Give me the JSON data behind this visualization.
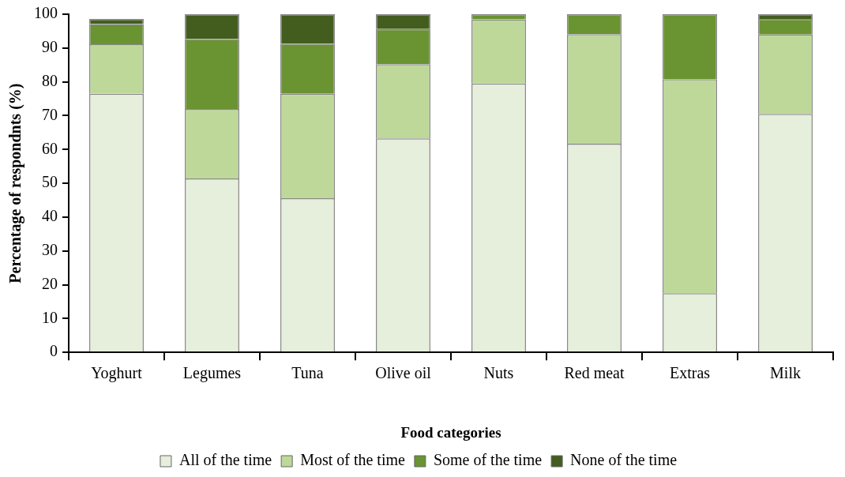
{
  "chart_data": {
    "type": "bar",
    "stacked": true,
    "xlabel": "Food categories",
    "ylabel": "Percentage of respondnts (%)",
    "categories": [
      "Yoghurt",
      "Legumes",
      "Tuna",
      "Olive oil",
      "Nuts",
      "Red meat",
      "Extras",
      "Milk"
    ],
    "series": [
      {
        "name": "All of the time",
        "color": "#e6eedc",
        "values": [
          76.5,
          51.4,
          45.6,
          63.3,
          79.5,
          61.7,
          17.5,
          70.5
        ]
      },
      {
        "name": "Most of the time",
        "color": "#bed89a",
        "values": [
          14.6,
          20.6,
          30.9,
          21.9,
          19.0,
          32.4,
          63.3,
          23.5
        ]
      },
      {
        "name": "Some of the time",
        "color": "#6a9331",
        "values": [
          6.0,
          20.7,
          14.8,
          10.4,
          1.5,
          5.9,
          19.2,
          4.6
        ]
      },
      {
        "name": "None of the time",
        "color": "#435d1f",
        "values": [
          1.5,
          7.3,
          8.7,
          4.4,
          0,
          0,
          0,
          1.4
        ]
      }
    ],
    "ylim": [
      0,
      100
    ],
    "yticks": [
      0,
      10,
      20,
      30,
      40,
      50,
      60,
      70,
      80,
      90,
      100
    ],
    "grid": false,
    "legend": "bottom"
  }
}
